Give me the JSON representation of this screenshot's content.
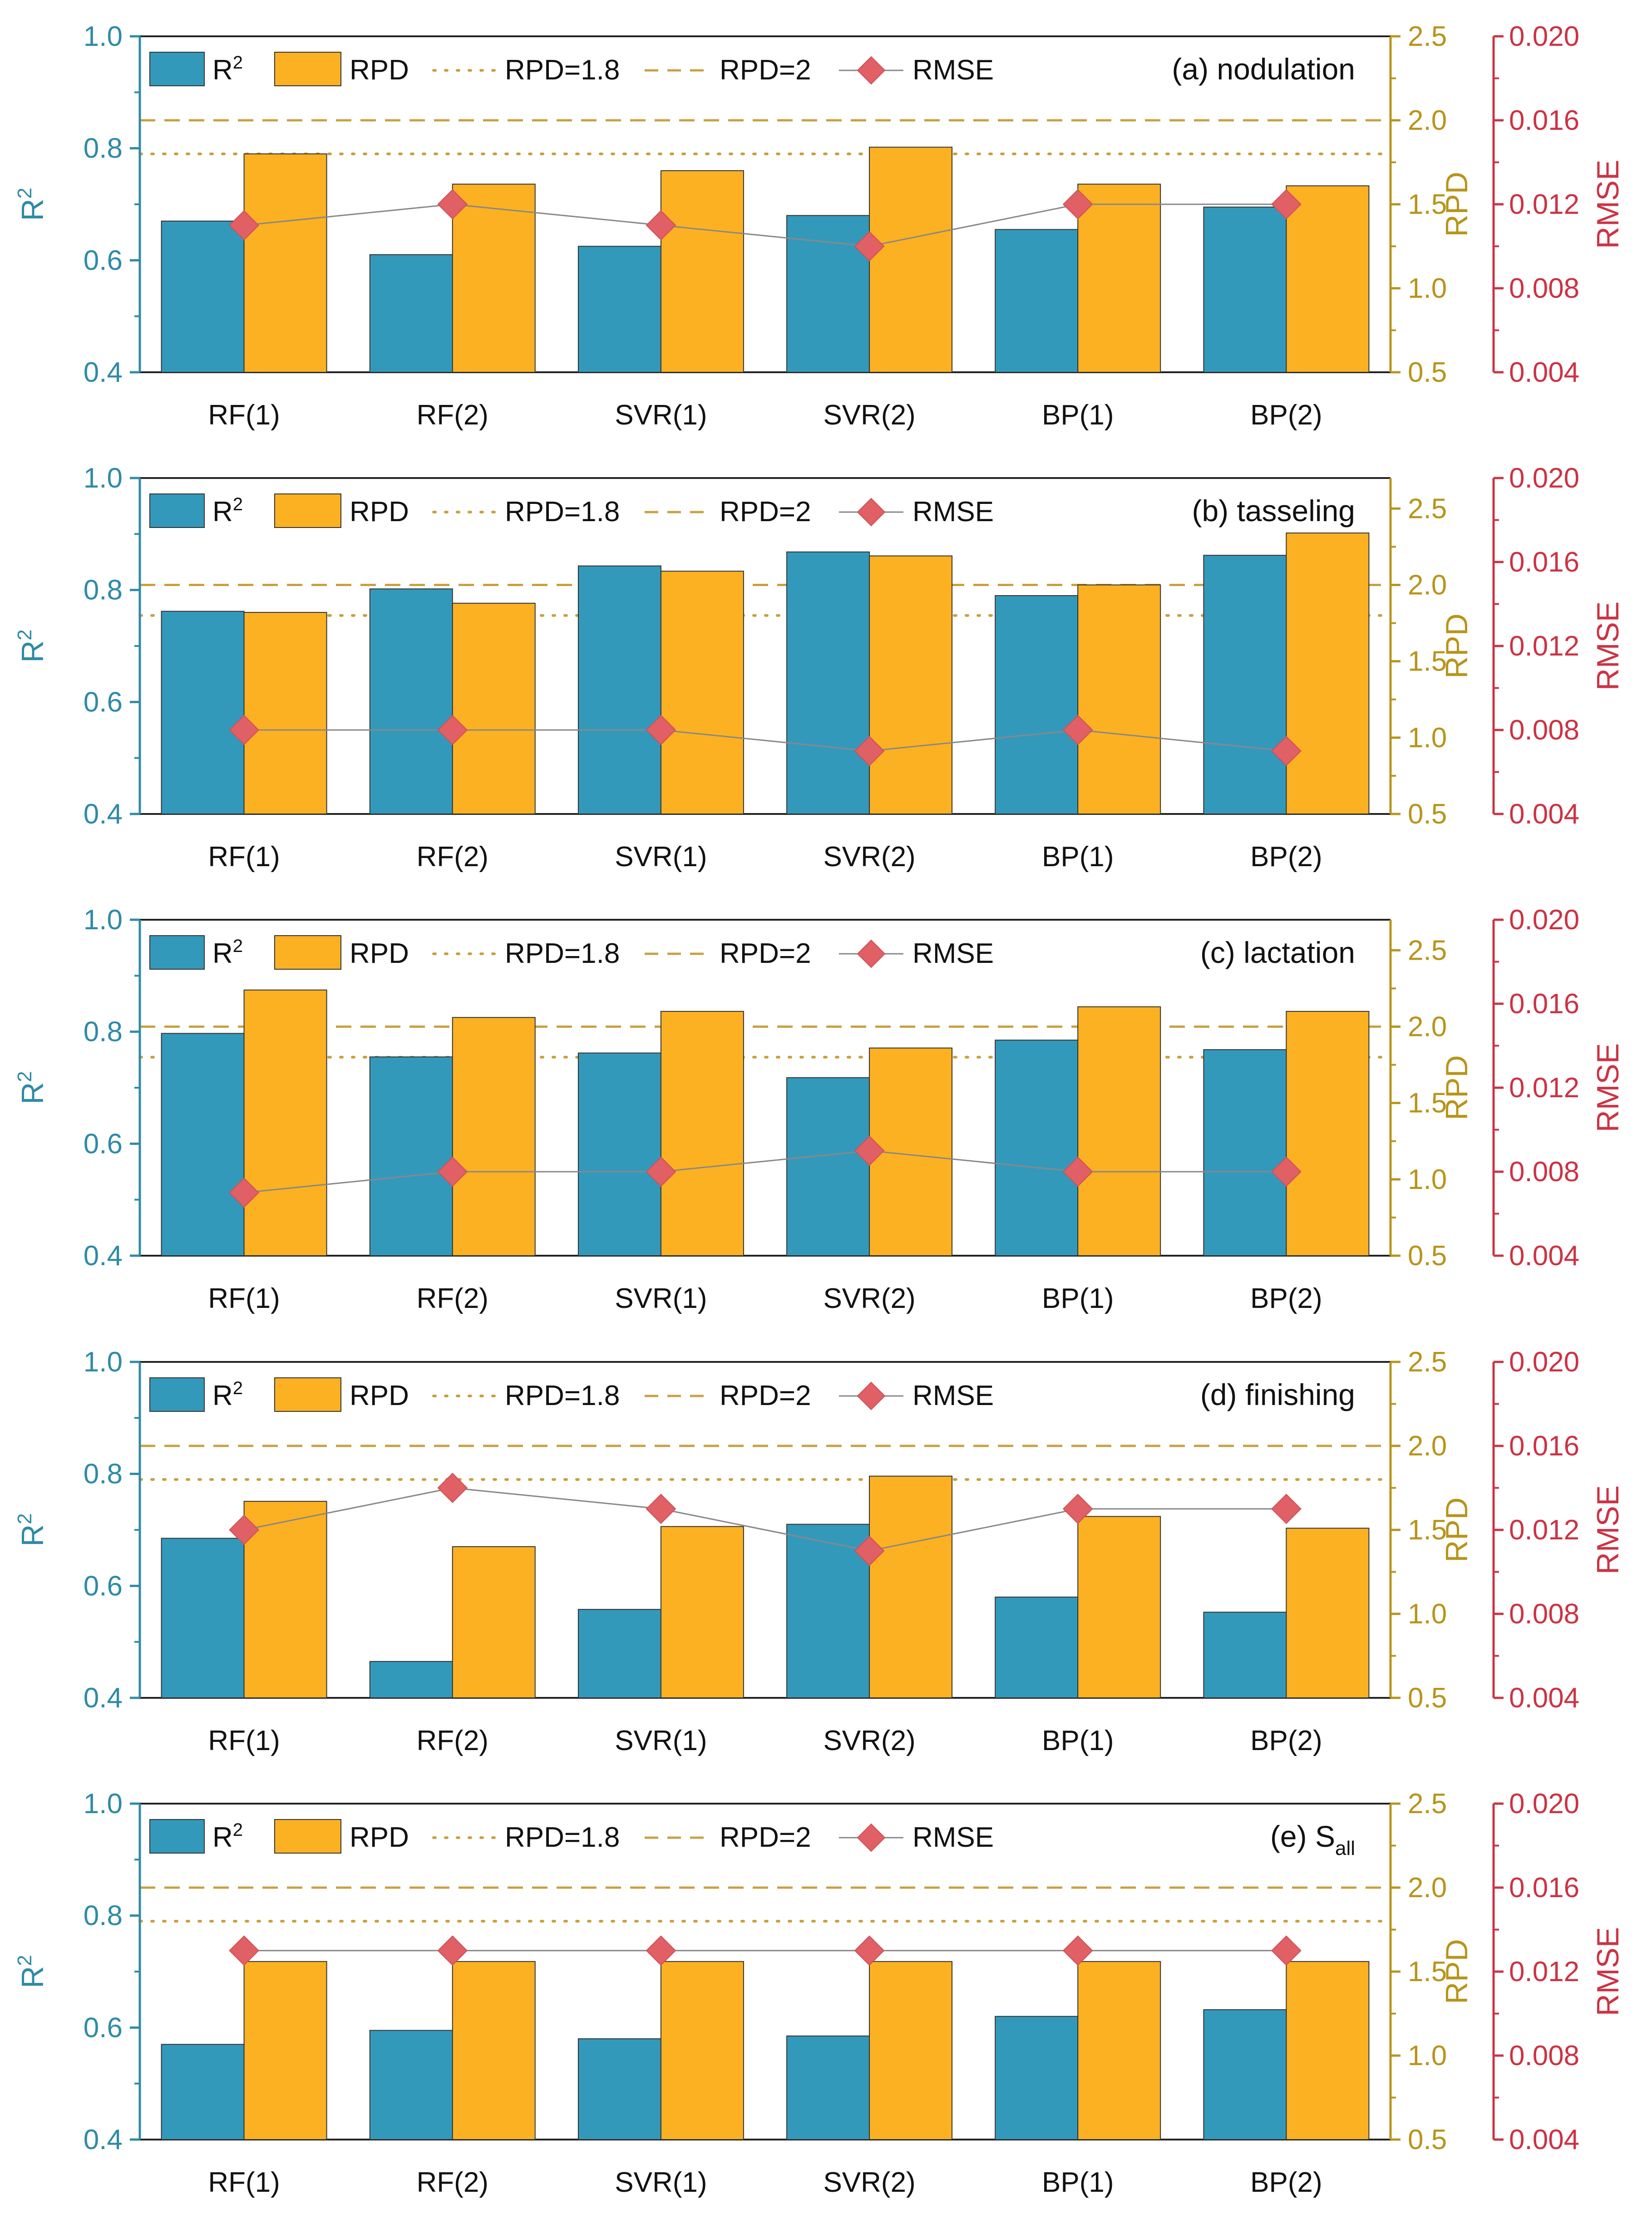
{
  "colors": {
    "r2_bar": "#3399BB",
    "rpd_bar": "#FBB122",
    "r2_axis": "#2E8BA6",
    "rpd_axis": "#B8941A",
    "rmse_axis": "#CC3344",
    "rmse_marker": "#E06066",
    "rmse_line": "#888888",
    "ref_line": "#C8A040",
    "axis_dark": "#222222"
  },
  "legend": {
    "r2": "R",
    "r2_sup": "2",
    "rpd": "RPD",
    "rpd18": "RPD=1.8",
    "rpd2": "RPD=2",
    "rmse": "RMSE"
  },
  "axis_labels": {
    "left": "R",
    "left_sup": "2",
    "right": "RPD",
    "far_right": "RMSE"
  },
  "chart_data": [
    {
      "type": "bar",
      "title": "(a) nodulation",
      "categories": [
        "RF(1)",
        "RF(2)",
        "SVR(1)",
        "SVR(2)",
        "BP(1)",
        "BP(2)"
      ],
      "series": [
        {
          "name": "R2",
          "axis": "left",
          "values": [
            0.67,
            0.61,
            0.625,
            0.68,
            0.655,
            0.695
          ]
        },
        {
          "name": "RPD",
          "axis": "right",
          "values": [
            1.8,
            1.62,
            1.7,
            1.84,
            1.62,
            1.61
          ]
        },
        {
          "name": "RMSE",
          "axis": "far_right",
          "values": [
            0.011,
            0.012,
            0.011,
            0.01,
            0.012,
            0.012
          ]
        }
      ],
      "reference_lines": {
        "rpd18": 1.8,
        "rpd2": 2.0
      },
      "ylim_left": [
        0.4,
        1.0
      ],
      "yticks_left": [
        "0.4",
        "0.6",
        "0.8",
        "1.0"
      ],
      "ylim_right": [
        0.5,
        2.5
      ],
      "yticks_right": [
        "0.5",
        "1.0",
        "1.5",
        "2.0",
        "2.5"
      ],
      "ylim_far_right": [
        0.004,
        0.02
      ],
      "yticks_far_right": [
        "0.004",
        "0.008",
        "0.012",
        "0.016",
        "0.020"
      ]
    },
    {
      "type": "bar",
      "title": "(b) tasseling",
      "categories": [
        "RF(1)",
        "RF(2)",
        "SVR(1)",
        "SVR(2)",
        "BP(1)",
        "BP(2)"
      ],
      "series": [
        {
          "name": "R2",
          "axis": "left",
          "values": [
            0.762,
            0.802,
            0.843,
            0.868,
            0.79,
            0.862
          ]
        },
        {
          "name": "RPD",
          "axis": "right",
          "values": [
            1.82,
            1.88,
            2.09,
            2.19,
            2.0,
            2.34
          ]
        },
        {
          "name": "RMSE",
          "axis": "far_right",
          "values": [
            0.008,
            0.008,
            0.008,
            0.007,
            0.008,
            0.007
          ]
        }
      ],
      "reference_lines": {
        "rpd18": 1.8,
        "rpd2": 2.0
      },
      "ylim_left": [
        0.4,
        1.0
      ],
      "yticks_left": [
        "0.4",
        "0.6",
        "0.8",
        "1.0"
      ],
      "ylim_right": [
        0.5,
        2.7
      ],
      "yticks_right": [
        "0.5",
        "1.0",
        "1.5",
        "2.0",
        "2.5"
      ],
      "ylim_far_right": [
        0.004,
        0.02
      ],
      "yticks_far_right": [
        "0.004",
        "0.008",
        "0.012",
        "0.016",
        "0.020"
      ]
    },
    {
      "type": "bar",
      "title": "(c) lactation",
      "categories": [
        "RF(1)",
        "RF(2)",
        "SVR(1)",
        "SVR(2)",
        "BP(1)",
        "BP(2)"
      ],
      "series": [
        {
          "name": "R2",
          "axis": "left",
          "values": [
            0.797,
            0.755,
            0.762,
            0.718,
            0.785,
            0.768
          ]
        },
        {
          "name": "RPD",
          "axis": "right",
          "values": [
            2.24,
            2.06,
            2.1,
            1.86,
            2.13,
            2.1
          ]
        },
        {
          "name": "RMSE",
          "axis": "far_right",
          "values": [
            0.007,
            0.008,
            0.008,
            0.009,
            0.008,
            0.008
          ]
        }
      ],
      "reference_lines": {
        "rpd18": 1.8,
        "rpd2": 2.0
      },
      "ylim_left": [
        0.4,
        1.0
      ],
      "yticks_left": [
        "0.4",
        "0.6",
        "0.8",
        "1.0"
      ],
      "ylim_right": [
        0.5,
        2.7
      ],
      "yticks_right": [
        "0.5",
        "1.0",
        "1.5",
        "2.0",
        "2.5"
      ],
      "ylim_far_right": [
        0.004,
        0.02
      ],
      "yticks_far_right": [
        "0.004",
        "0.008",
        "0.012",
        "0.016",
        "0.020"
      ]
    },
    {
      "type": "bar",
      "title": "(d) finishing",
      "categories": [
        "RF(1)",
        "RF(2)",
        "SVR(1)",
        "SVR(2)",
        "BP(1)",
        "BP(2)"
      ],
      "series": [
        {
          "name": "R2",
          "axis": "left",
          "values": [
            0.685,
            0.465,
            0.558,
            0.71,
            0.58,
            0.553
          ]
        },
        {
          "name": "RPD",
          "axis": "right",
          "values": [
            1.67,
            1.4,
            1.52,
            1.82,
            1.58,
            1.51
          ]
        },
        {
          "name": "RMSE",
          "axis": "far_right",
          "values": [
            0.012,
            0.014,
            0.013,
            0.011,
            0.013,
            0.013
          ]
        }
      ],
      "reference_lines": {
        "rpd18": 1.8,
        "rpd2": 2.0
      },
      "ylim_left": [
        0.4,
        1.0
      ],
      "yticks_left": [
        "0.4",
        "0.6",
        "0.8",
        "1.0"
      ],
      "ylim_right": [
        0.5,
        2.5
      ],
      "yticks_right": [
        "0.5",
        "1.0",
        "1.5",
        "2.0",
        "2.5"
      ],
      "ylim_far_right": [
        0.004,
        0.02
      ],
      "yticks_far_right": [
        "0.004",
        "0.008",
        "0.012",
        "0.016",
        "0.020"
      ]
    },
    {
      "type": "bar",
      "title": "(e) S",
      "title_sub": "all",
      "categories": [
        "RF(1)",
        "RF(2)",
        "SVR(1)",
        "SVR(2)",
        "BP(1)",
        "BP(2)"
      ],
      "series": [
        {
          "name": "R2",
          "axis": "left",
          "values": [
            0.57,
            0.595,
            0.58,
            0.585,
            0.62,
            0.632
          ]
        },
        {
          "name": "RPD",
          "axis": "right",
          "values": [
            1.56,
            1.56,
            1.56,
            1.56,
            1.56,
            1.56
          ]
        },
        {
          "name": "RMSE",
          "axis": "far_right",
          "values": [
            0.013,
            0.013,
            0.013,
            0.013,
            0.013,
            0.013
          ]
        }
      ],
      "reference_lines": {
        "rpd18": 1.8,
        "rpd2": 2.0
      },
      "ylim_left": [
        0.4,
        1.0
      ],
      "yticks_left": [
        "0.4",
        "0.6",
        "0.8",
        "1.0"
      ],
      "ylim_right": [
        0.5,
        2.5
      ],
      "yticks_right": [
        "0.5",
        "1.0",
        "1.5",
        "2.0",
        "2.5"
      ],
      "ylim_far_right": [
        0.004,
        0.02
      ],
      "yticks_far_right": [
        "0.004",
        "0.008",
        "0.012",
        "0.016",
        "0.020"
      ]
    }
  ]
}
